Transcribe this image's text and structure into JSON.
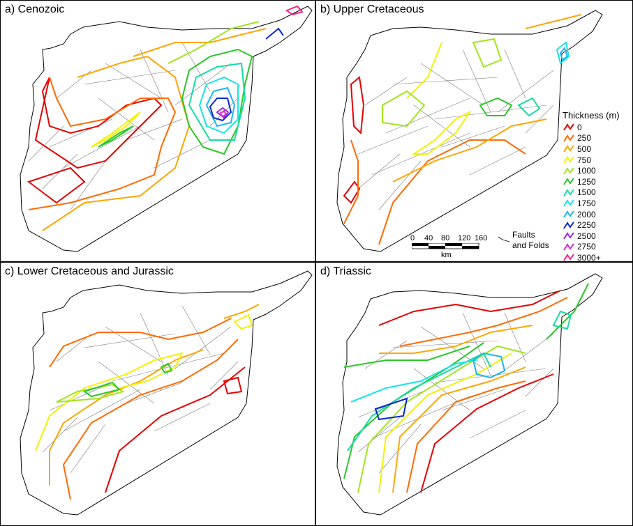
{
  "panels": [
    {
      "key": "a",
      "title": "a) Cenozoic"
    },
    {
      "key": "b",
      "title": "b) Upper Cretaceous"
    },
    {
      "key": "c",
      "title": "c) Lower Cretaceous and Jurassic"
    },
    {
      "key": "d",
      "title": "d) Triassic"
    }
  ],
  "legend": {
    "title": "Thickness (m)",
    "items": [
      {
        "label": "0",
        "color": "#e60000"
      },
      {
        "label": "250",
        "color": "#ff6a00"
      },
      {
        "label": "500",
        "color": "#ffa500"
      },
      {
        "label": "750",
        "color": "#f2f200"
      },
      {
        "label": "1000",
        "color": "#a0e61e"
      },
      {
        "label": "1250",
        "color": "#28c828"
      },
      {
        "label": "1500",
        "color": "#14dca0"
      },
      {
        "label": "1750",
        "color": "#14e6e6"
      },
      {
        "label": "2000",
        "color": "#1eb4f0"
      },
      {
        "label": "2250",
        "color": "#0a28d2"
      },
      {
        "label": "2500",
        "color": "#9628dc"
      },
      {
        "label": "2750",
        "color": "#dc28dc"
      },
      {
        "label": "3000+",
        "color": "#ff1e8c"
      }
    ]
  },
  "scale_bar": {
    "ticks": [
      "0",
      "40",
      "80",
      "120",
      "160"
    ],
    "unit": "km"
  },
  "fault_key": {
    "line1": "Faults",
    "line2": "and Folds"
  }
}
